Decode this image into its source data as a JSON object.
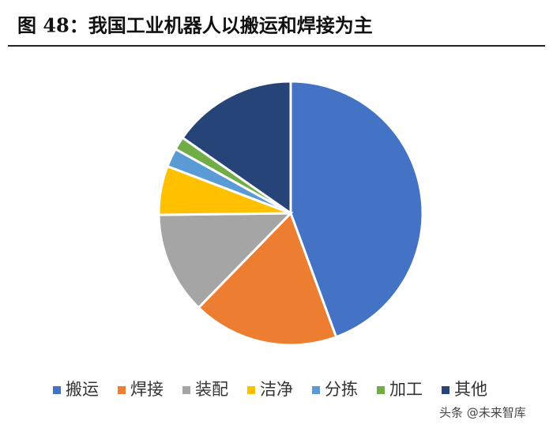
{
  "chart_data": {
    "type": "pie",
    "title": "图 48：我国工业机器人以搬运和焊接为主",
    "categories": [
      "搬运",
      "焊接",
      "装配",
      "洁净",
      "分拣",
      "加工",
      "其他"
    ],
    "values": [
      44.4,
      17.9,
      12.5,
      6.0,
      2.3,
      1.6,
      15.3
    ],
    "colors": [
      "#4472c4",
      "#ed7d31",
      "#a5a5a5",
      "#ffc000",
      "#5b9bd5",
      "#70ad47",
      "#264478"
    ],
    "legend": "bottom",
    "watermark": "头条 @未来智库"
  }
}
